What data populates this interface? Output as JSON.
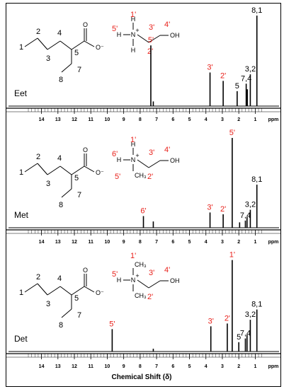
{
  "colors": {
    "frame": "#000000",
    "label_red": "#e8201a",
    "label_black": "#000000",
    "spectrum": "#000000"
  },
  "chemistry": {
    "anion_labels": [
      "1",
      "2",
      "3",
      "4",
      "5",
      "7",
      "8"
    ],
    "atoms": {
      "oxygen": "O",
      "oxide": "O⁻",
      "nitrogen": "N",
      "cation": "+",
      "hydrogen": "H",
      "methyl": "CH₃",
      "hydroxyl": "OH"
    }
  },
  "chart_data": [
    {
      "type": "line",
      "panel": "Eet",
      "xlabel": "",
      "x_unit": "ppm",
      "xlim": [
        14.8,
        0.5
      ],
      "x_ticks": [
        "14",
        "13",
        "12",
        "11",
        "10",
        "9",
        "8",
        "7",
        "6",
        "5",
        "4",
        "3",
        "2",
        "1"
      ],
      "cation_labels": [
        "1'",
        "5'",
        "3'",
        "4'",
        "2'"
      ],
      "peaks": [
        {
          "x": 7.35,
          "height": 0.65,
          "label": "5'",
          "label_color": "red"
        },
        {
          "x": 7.2,
          "height": 0.05,
          "label": "",
          "label_color": "black"
        },
        {
          "x": 3.75,
          "height": 0.36,
          "label": "3'",
          "label_color": "red"
        },
        {
          "x": 2.95,
          "height": 0.27,
          "label": "2'",
          "label_color": "red"
        },
        {
          "x": 2.1,
          "height": 0.16,
          "label": "5",
          "label_color": "black"
        },
        {
          "x": 1.55,
          "height": 0.24,
          "label": "7,4",
          "label_color": "black"
        },
        {
          "x": 1.48,
          "height": 0.18,
          "label": "",
          "label_color": "black"
        },
        {
          "x": 1.3,
          "height": 0.34,
          "label": "3,2",
          "label_color": "black"
        },
        {
          "x": 0.9,
          "height": 0.97,
          "label": "8,1",
          "label_color": "black"
        }
      ]
    },
    {
      "type": "line",
      "panel": "Met",
      "xlabel": "",
      "x_unit": "ppm",
      "xlim": [
        14.8,
        0.5
      ],
      "x_ticks": [
        "14",
        "13",
        "12",
        "11",
        "10",
        "9",
        "8",
        "7",
        "6",
        "5",
        "4",
        "3",
        "2",
        "1"
      ],
      "cation_labels": [
        "1'",
        "6'",
        "3'",
        "4'",
        "2'",
        "5'"
      ],
      "peaks": [
        {
          "x": 7.8,
          "height": 0.13,
          "label": "6'",
          "label_color": "red"
        },
        {
          "x": 7.2,
          "height": 0.07,
          "label": "",
          "label_color": "black"
        },
        {
          "x": 3.75,
          "height": 0.17,
          "label": "3'",
          "label_color": "red"
        },
        {
          "x": 2.95,
          "height": 0.15,
          "label": "2'",
          "label_color": "red"
        },
        {
          "x": 2.4,
          "height": 1.0,
          "label": "5'",
          "label_color": "red"
        },
        {
          "x": 1.95,
          "height": 0.06,
          "label": "",
          "label_color": "black"
        },
        {
          "x": 1.6,
          "height": 0.08,
          "label": "7,4",
          "label_color": "black"
        },
        {
          "x": 1.5,
          "height": 0.12,
          "label": "",
          "label_color": "black"
        },
        {
          "x": 1.3,
          "height": 0.2,
          "label": "3,2",
          "label_color": "black"
        },
        {
          "x": 0.9,
          "height": 0.48,
          "label": "8,1",
          "label_color": "black"
        }
      ]
    },
    {
      "type": "line",
      "panel": "Det",
      "xlabel": "Chemical Shift (δ)",
      "x_unit": "ppm",
      "xlim": [
        14.8,
        0.5
      ],
      "x_ticks": [
        "14",
        "13",
        "12",
        "11",
        "10",
        "9",
        "8",
        "7",
        "6",
        "5",
        "4",
        "3",
        "2",
        "1"
      ],
      "cation_labels": [
        "1'",
        "5'",
        "3'",
        "4'",
        "2'"
      ],
      "peaks": [
        {
          "x": 9.7,
          "height": 0.24,
          "label": "5'",
          "label_color": "red"
        },
        {
          "x": 7.2,
          "height": 0.03,
          "label": "",
          "label_color": "black"
        },
        {
          "x": 3.7,
          "height": 0.27,
          "label": "3'",
          "label_color": "red"
        },
        {
          "x": 2.7,
          "height": 0.3,
          "label": "2'",
          "label_color": "red"
        },
        {
          "x": 2.4,
          "height": 0.98,
          "label": "1'",
          "label_color": "red"
        },
        {
          "x": 2.0,
          "height": 0.1,
          "label": "5",
          "label_color": "black"
        },
        {
          "x": 1.6,
          "height": 0.14,
          "label": "7,4",
          "label_color": "black"
        },
        {
          "x": 1.5,
          "height": 0.18,
          "label": "",
          "label_color": "black"
        },
        {
          "x": 1.3,
          "height": 0.34,
          "label": "3,2",
          "label_color": "black"
        },
        {
          "x": 0.9,
          "height": 0.45,
          "label": "8,1",
          "label_color": "black"
        }
      ]
    }
  ]
}
